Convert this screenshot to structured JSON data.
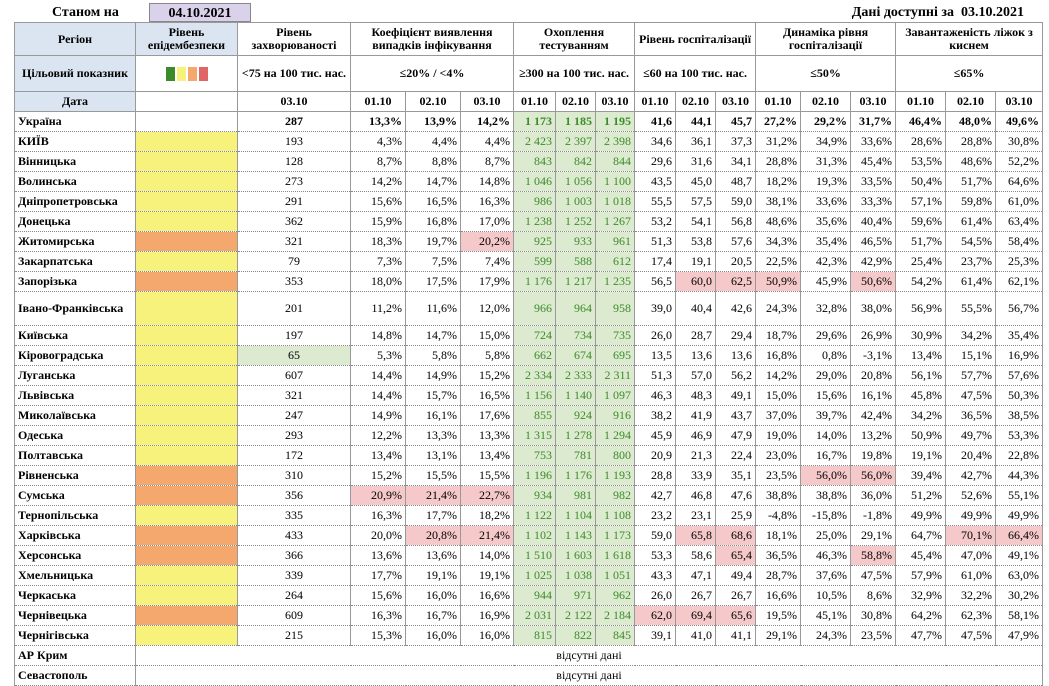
{
  "header": {
    "as_of_label": "Станом на",
    "as_of_date": "04.10.2021",
    "available_label": "Дані доступні за",
    "available_date": "03.10.2021"
  },
  "columns": [
    "Регіон",
    "Рівень епідембезпеки",
    "Рівень захворюваності",
    "Коефіцієнт виявлення випадків інфікування",
    "Охоплення тестуванням",
    "Рівень госпіталізації",
    "Динаміка рівня госпіталізації",
    "Завантаженість ліжок з киснем"
  ],
  "targets": {
    "label": "Цільовий показник",
    "values": [
      "<75 на 100 тис. нас.",
      "≤20% / <4%",
      "≥300 на 100 тис. нас.",
      "≤60 на 100 тис. нас.",
      "≤50%",
      "≤65%"
    ]
  },
  "dates": {
    "label": "Дата",
    "incidence_date": "03.10",
    "group_dates": [
      "01.10",
      "02.10",
      "03.10"
    ]
  },
  "palette": {
    "yellow": "#f6f27c",
    "orange": "#f5a86e",
    "alert": "#f5c9c9",
    "good": "#dcebd0",
    "testing_fill": "#dcebd0",
    "testing_text": "#3d8a2a",
    "header_fill": "#dbe5f1",
    "date_box": "#d9d2ea"
  },
  "rows": [
    {
      "name": "Україна",
      "bold": true,
      "level": null,
      "cells": [
        "287",
        "13,3%",
        "13,9%",
        "14,2%",
        "1 173",
        "1 185",
        "1 195",
        "41,6",
        "44,1",
        "45,7",
        "27,2%",
        "29,2%",
        "31,7%",
        "46,4%",
        "48,0%",
        "49,6%"
      ]
    },
    {
      "name": "КИЇВ",
      "level": "yellow",
      "cells": [
        "193",
        "4,3%",
        "4,4%",
        "4,4%",
        "2 423",
        "2 397",
        "2 398",
        "34,6",
        "36,1",
        "37,3",
        "31,2%",
        "34,9%",
        "33,6%",
        "28,6%",
        "28,8%",
        "30,8%"
      ]
    },
    {
      "name": "Вінницька",
      "level": "yellow",
      "cells": [
        "128",
        "8,7%",
        "8,8%",
        "8,7%",
        "843",
        "842",
        "844",
        "29,6",
        "31,6",
        "34,1",
        "28,8%",
        "31,3%",
        "45,4%",
        "53,5%",
        "48,6%",
        "52,2%"
      ]
    },
    {
      "name": "Волинська",
      "level": "yellow",
      "cells": [
        "273",
        "14,2%",
        "14,7%",
        "14,8%",
        "1 046",
        "1 056",
        "1 100",
        "43,5",
        "45,0",
        "48,7",
        "18,2%",
        "19,3%",
        "33,5%",
        "50,4%",
        "51,7%",
        "64,6%"
      ]
    },
    {
      "name": "Дніпропетровська",
      "level": "yellow",
      "cells": [
        "291",
        "15,6%",
        "16,5%",
        "16,3%",
        "986",
        "1 003",
        "1 018",
        "55,5",
        "57,5",
        "59,0",
        "38,1%",
        "33,6%",
        "33,3%",
        "57,1%",
        "59,8%",
        "61,0%"
      ]
    },
    {
      "name": "Донецька",
      "level": "yellow",
      "cells": [
        "362",
        "15,9%",
        "16,8%",
        "17,0%",
        "1 238",
        "1 252",
        "1 267",
        "53,2",
        "54,1",
        "56,8",
        "48,6%",
        "35,6%",
        "40,4%",
        "59,6%",
        "61,4%",
        "63,4%"
      ]
    },
    {
      "name": "Житомирська",
      "level": "orange",
      "alert": [
        3
      ],
      "cells": [
        "321",
        "18,3%",
        "19,7%",
        "20,2%",
        "925",
        "933",
        "961",
        "51,3",
        "53,8",
        "57,6",
        "34,3%",
        "35,4%",
        "46,5%",
        "51,7%",
        "54,5%",
        "58,4%"
      ]
    },
    {
      "name": "Закарпатська",
      "level": "yellow",
      "cells": [
        "79",
        "7,3%",
        "7,5%",
        "7,4%",
        "599",
        "588",
        "612",
        "17,4",
        "19,1",
        "20,5",
        "22,5%",
        "42,3%",
        "42,9%",
        "25,4%",
        "23,7%",
        "25,3%"
      ]
    },
    {
      "name": "Запорізька",
      "level": "orange",
      "alert": [
        8,
        9,
        10,
        12
      ],
      "cells": [
        "353",
        "18,0%",
        "17,5%",
        "17,9%",
        "1 176",
        "1 217",
        "1 235",
        "56,5",
        "60,0",
        "62,5",
        "50,9%",
        "45,9%",
        "50,6%",
        "54,2%",
        "61,4%",
        "62,1%"
      ]
    },
    {
      "name": "Івано-Франківська",
      "level": "yellow",
      "cells": [
        "201",
        "11,2%",
        "11,6%",
        "12,0%",
        "966",
        "964",
        "958",
        "39,0",
        "40,4",
        "42,6",
        "24,3%",
        "32,8%",
        "38,0%",
        "56,9%",
        "55,5%",
        "56,7%"
      ]
    },
    {
      "name": "Київська",
      "level": "yellow",
      "cells": [
        "197",
        "14,8%",
        "14,7%",
        "15,0%",
        "724",
        "734",
        "735",
        "26,0",
        "28,7",
        "29,4",
        "18,7%",
        "29,6%",
        "26,9%",
        "30,9%",
        "34,2%",
        "35,4%"
      ]
    },
    {
      "name": "Кіровоградська",
      "level": "yellow",
      "good": [
        0
      ],
      "cells": [
        "65",
        "5,3%",
        "5,8%",
        "5,8%",
        "662",
        "674",
        "695",
        "13,5",
        "13,6",
        "13,6",
        "16,8%",
        "0,8%",
        "-3,1%",
        "13,4%",
        "15,1%",
        "16,9%"
      ]
    },
    {
      "name": "Луганська",
      "level": "yellow",
      "cells": [
        "607",
        "14,4%",
        "14,9%",
        "15,2%",
        "2 334",
        "2 333",
        "2 311",
        "51,3",
        "57,0",
        "56,2",
        "14,2%",
        "29,0%",
        "20,8%",
        "56,1%",
        "57,7%",
        "57,6%"
      ]
    },
    {
      "name": "Львівська",
      "level": "yellow",
      "cells": [
        "321",
        "14,4%",
        "15,7%",
        "16,5%",
        "1 156",
        "1 140",
        "1 097",
        "46,3",
        "48,3",
        "49,1",
        "15,0%",
        "15,6%",
        "16,1%",
        "45,8%",
        "47,5%",
        "50,3%"
      ]
    },
    {
      "name": "Миколаївська",
      "level": "yellow",
      "cells": [
        "247",
        "14,9%",
        "16,1%",
        "17,6%",
        "855",
        "924",
        "916",
        "38,2",
        "41,9",
        "43,7",
        "37,0%",
        "39,7%",
        "42,4%",
        "34,2%",
        "36,5%",
        "38,5%"
      ]
    },
    {
      "name": "Одеська",
      "level": "yellow",
      "cells": [
        "293",
        "12,2%",
        "13,3%",
        "13,3%",
        "1 315",
        "1 278",
        "1 294",
        "45,9",
        "46,9",
        "47,9",
        "19,0%",
        "14,0%",
        "13,2%",
        "50,9%",
        "49,7%",
        "53,3%"
      ]
    },
    {
      "name": "Полтавська",
      "level": "yellow",
      "cells": [
        "172",
        "13,4%",
        "13,1%",
        "13,4%",
        "753",
        "781",
        "800",
        "20,9",
        "21,3",
        "22,4",
        "23,0%",
        "16,7%",
        "19,8%",
        "19,1%",
        "20,4%",
        "22,8%"
      ]
    },
    {
      "name": "Рівненська",
      "level": "orange",
      "alert": [
        11,
        12
      ],
      "cells": [
        "310",
        "15,2%",
        "15,5%",
        "15,5%",
        "1 196",
        "1 176",
        "1 193",
        "28,8",
        "33,9",
        "35,1",
        "23,5%",
        "56,0%",
        "56,0%",
        "39,4%",
        "42,7%",
        "44,3%"
      ]
    },
    {
      "name": "Сумська",
      "level": "orange",
      "alert": [
        1,
        2,
        3
      ],
      "cells": [
        "356",
        "20,9%",
        "21,4%",
        "22,7%",
        "934",
        "981",
        "982",
        "42,7",
        "46,8",
        "47,6",
        "38,8%",
        "38,8%",
        "36,0%",
        "51,2%",
        "52,6%",
        "55,1%"
      ]
    },
    {
      "name": "Тернопільська",
      "level": "yellow",
      "cells": [
        "335",
        "16,3%",
        "17,7%",
        "18,2%",
        "1 122",
        "1 104",
        "1 108",
        "23,2",
        "23,1",
        "25,9",
        "-4,8%",
        "-15,8%",
        "-1,8%",
        "49,9%",
        "49,9%",
        "49,9%"
      ]
    },
    {
      "name": "Харківська",
      "level": "orange",
      "alert": [
        2,
        3,
        8,
        9,
        14,
        15
      ],
      "cells": [
        "433",
        "20,0%",
        "20,8%",
        "21,4%",
        "1 102",
        "1 143",
        "1 173",
        "59,0",
        "65,8",
        "68,6",
        "18,1%",
        "25,0%",
        "29,1%",
        "64,7%",
        "70,1%",
        "66,4%"
      ]
    },
    {
      "name": "Херсонська",
      "level": "orange",
      "alert": [
        9,
        12
      ],
      "cells": [
        "366",
        "13,6%",
        "13,6%",
        "14,0%",
        "1 510",
        "1 603",
        "1 618",
        "53,3",
        "58,6",
        "65,4",
        "36,5%",
        "46,3%",
        "58,8%",
        "45,4%",
        "47,0%",
        "49,1%"
      ]
    },
    {
      "name": "Хмельницька",
      "level": "yellow",
      "cells": [
        "339",
        "17,7%",
        "19,1%",
        "19,1%",
        "1 025",
        "1 038",
        "1 051",
        "43,3",
        "47,1",
        "49,4",
        "28,7%",
        "37,6%",
        "47,5%",
        "57,9%",
        "61,0%",
        "63,0%"
      ]
    },
    {
      "name": "Черкаська",
      "level": "yellow",
      "cells": [
        "264",
        "15,6%",
        "16,0%",
        "16,6%",
        "944",
        "971",
        "962",
        "26,0",
        "26,7",
        "26,7",
        "16,6%",
        "10,5%",
        "8,6%",
        "32,9%",
        "32,2%",
        "30,2%"
      ]
    },
    {
      "name": "Чернівецька",
      "level": "orange",
      "alert": [
        7,
        8,
        9
      ],
      "cells": [
        "609",
        "16,3%",
        "16,7%",
        "16,9%",
        "2 031",
        "2 122",
        "2 184",
        "62,0",
        "69,4",
        "65,6",
        "19,5%",
        "45,1%",
        "30,8%",
        "64,2%",
        "62,3%",
        "58,1%"
      ]
    },
    {
      "name": "Чернігівська",
      "level": "yellow",
      "cells": [
        "215",
        "15,3%",
        "16,0%",
        "16,0%",
        "815",
        "822",
        "845",
        "39,1",
        "41,0",
        "41,1",
        "29,1%",
        "24,3%",
        "23,5%",
        "47,7%",
        "47,5%",
        "47,9%"
      ]
    },
    {
      "name": "АР Крим",
      "no_data": "відсутні дані"
    },
    {
      "name": "Севастополь",
      "no_data": "відсутні дані"
    }
  ]
}
